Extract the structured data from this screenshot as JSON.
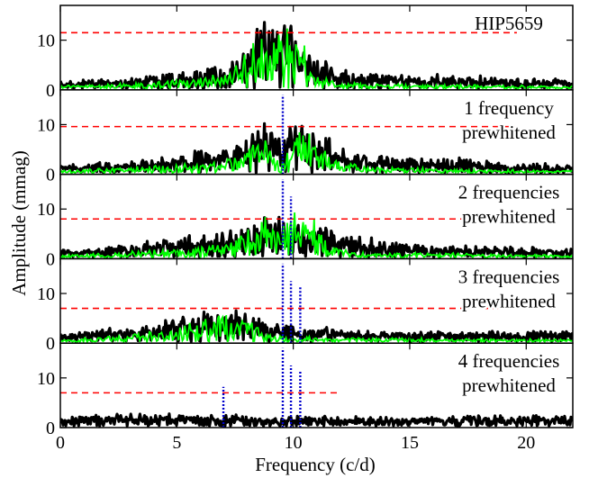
{
  "chart_data": {
    "type": "line",
    "xlabel": "Frequency (c/d)",
    "ylabel": "Amplitude (mmag)",
    "xlim": [
      0,
      22
    ],
    "xticks": [
      "0",
      "5",
      "10",
      "15",
      "20"
    ],
    "colors": {
      "spectrum": "#000000",
      "smoothed": "#00ff00",
      "threshold": "#ff0000",
      "frequency_marker": "#0000cc"
    },
    "panels": [
      {
        "label_lines": [
          "HIP5659"
        ],
        "ylim": [
          0,
          17
        ],
        "yticks": [
          "0",
          "10"
        ],
        "threshold": 11.5,
        "threshold_x_end": 19.6,
        "noise_level": 2.0,
        "envelope": [
          [
            0,
            1.8
          ],
          [
            2,
            2.2
          ],
          [
            4,
            3.0
          ],
          [
            6,
            4.0
          ],
          [
            7,
            5.0
          ],
          [
            8,
            9.0
          ],
          [
            8.6,
            15.5
          ],
          [
            9.0,
            12.0
          ],
          [
            9.5,
            16.5
          ],
          [
            10.0,
            14.0
          ],
          [
            10.4,
            11.0
          ],
          [
            11.0,
            7.0
          ],
          [
            12.0,
            4.5
          ],
          [
            13.0,
            3.2
          ],
          [
            15.0,
            3.0
          ],
          [
            17.0,
            3.5
          ],
          [
            19.0,
            2.5
          ],
          [
            22.0,
            2.2
          ]
        ],
        "green_envelope": [
          [
            0,
            0.8
          ],
          [
            3,
            1.5
          ],
          [
            6,
            2.5
          ],
          [
            7.5,
            5.0
          ],
          [
            8.6,
            14.0
          ],
          [
            9.0,
            8.0
          ],
          [
            9.5,
            16.0
          ],
          [
            10.0,
            11.0
          ],
          [
            10.5,
            9.0
          ],
          [
            11.0,
            3.0
          ],
          [
            12.0,
            1.5
          ],
          [
            22.0,
            0.8
          ]
        ],
        "markers": []
      },
      {
        "label_lines": [
          "1 frequency",
          "prewhitened"
        ],
        "ylim": [
          0,
          17
        ],
        "yticks": [
          "0",
          "10"
        ],
        "threshold": 9.6,
        "threshold_x_end": 19.6,
        "noise_level": 2.0,
        "envelope": [
          [
            0,
            1.8
          ],
          [
            2,
            2.5
          ],
          [
            4,
            3.5
          ],
          [
            6,
            5.0
          ],
          [
            7,
            5.5
          ],
          [
            8,
            7.0
          ],
          [
            9,
            11.5
          ],
          [
            9.5,
            8.0
          ],
          [
            10.3,
            11.8
          ],
          [
            11,
            9.0
          ],
          [
            12,
            6.5
          ],
          [
            13,
            4.0
          ],
          [
            15,
            3.5
          ],
          [
            17,
            3.5
          ],
          [
            19,
            2.5
          ],
          [
            22,
            2.0
          ]
        ],
        "green_envelope": [
          [
            0,
            0.8
          ],
          [
            3,
            1.5
          ],
          [
            6,
            2.5
          ],
          [
            7.5,
            3.5
          ],
          [
            9.0,
            9.0
          ],
          [
            9.6,
            3.0
          ],
          [
            10.3,
            11.5
          ],
          [
            11.0,
            6.5
          ],
          [
            12.0,
            3.0
          ],
          [
            13.5,
            1.5
          ],
          [
            22,
            0.8
          ]
        ],
        "markers": [
          {
            "x": 9.55,
            "amp": 16.0
          }
        ]
      },
      {
        "label_lines": [
          "2 frequencies",
          "prewhitened"
        ],
        "ylim": [
          0,
          17
        ],
        "yticks": [
          "0",
          "10"
        ],
        "threshold": 8.0,
        "threshold_x_end": 19.6,
        "noise_level": 2.0,
        "envelope": [
          [
            0,
            1.8
          ],
          [
            2,
            2.5
          ],
          [
            4,
            4.0
          ],
          [
            6,
            5.0
          ],
          [
            7.5,
            6.0
          ],
          [
            8.5,
            7.5
          ],
          [
            9.2,
            10.0
          ],
          [
            9.8,
            7.0
          ],
          [
            10.5,
            8.5
          ],
          [
            11,
            8.0
          ],
          [
            12,
            6.0
          ],
          [
            13,
            4.5
          ],
          [
            15,
            3.0
          ],
          [
            17,
            2.8
          ],
          [
            19,
            2.5
          ],
          [
            22,
            2.2
          ]
        ],
        "green_envelope": [
          [
            0,
            0.8
          ],
          [
            3,
            1.5
          ],
          [
            6,
            2.5
          ],
          [
            7.5,
            4.0
          ],
          [
            8.8,
            9.0
          ],
          [
            9.3,
            6.0
          ],
          [
            9.9,
            10.0
          ],
          [
            10.4,
            9.0
          ],
          [
            10.9,
            9.5
          ],
          [
            11.5,
            3.5
          ],
          [
            12.5,
            1.5
          ],
          [
            22,
            0.8
          ]
        ],
        "markers": [
          {
            "x": 9.55,
            "amp": 16.0
          },
          {
            "x": 9.9,
            "amp": 12.5
          }
        ]
      },
      {
        "label_lines": [
          "3 frequencies",
          "prewhitened"
        ],
        "ylim": [
          0,
          17
        ],
        "yticks": [
          "0",
          "10"
        ],
        "threshold": 7.0,
        "threshold_x_end": 19.6,
        "noise_level": 2.0,
        "envelope": [
          [
            0,
            2.0
          ],
          [
            2,
            3.0
          ],
          [
            4,
            4.0
          ],
          [
            5.5,
            6.0
          ],
          [
            6.5,
            7.0
          ],
          [
            7.5,
            7.5
          ],
          [
            8.5,
            5.0
          ],
          [
            9.5,
            4.0
          ],
          [
            10.5,
            3.5
          ],
          [
            12,
            3.0
          ],
          [
            14,
            2.5
          ],
          [
            17,
            2.5
          ],
          [
            20,
            2.5
          ],
          [
            22,
            2.5
          ]
        ],
        "green_envelope": [
          [
            0,
            0.8
          ],
          [
            3,
            1.8
          ],
          [
            5,
            3.0
          ],
          [
            6.0,
            5.0
          ],
          [
            7.0,
            8.0
          ],
          [
            7.5,
            6.0
          ],
          [
            8.0,
            5.0
          ],
          [
            9.0,
            2.0
          ],
          [
            10,
            1.5
          ],
          [
            12,
            1.2
          ],
          [
            22,
            0.8
          ]
        ],
        "markers": [
          {
            "x": 9.55,
            "amp": 16.0
          },
          {
            "x": 9.9,
            "amp": 12.5
          },
          {
            "x": 10.3,
            "amp": 11.5
          }
        ]
      },
      {
        "label_lines": [
          "4 frequencies",
          "prewhitened"
        ],
        "ylim": [
          0,
          17
        ],
        "yticks": [
          "0",
          "10"
        ],
        "threshold": 7.0,
        "threshold_x_end": 12.0,
        "noise_level": 1.7,
        "envelope": [
          [
            0,
            2.0
          ],
          [
            2,
            3.0
          ],
          [
            4,
            3.0
          ],
          [
            6,
            3.0
          ],
          [
            8,
            2.5
          ],
          [
            10,
            2.5
          ],
          [
            12,
            2.3
          ],
          [
            14,
            2.2
          ],
          [
            17,
            2.5
          ],
          [
            20,
            2.5
          ],
          [
            22,
            2.3
          ]
        ],
        "green_envelope": [],
        "markers": [
          {
            "x": 7.0,
            "amp": 8.2
          },
          {
            "x": 9.55,
            "amp": 16.0
          },
          {
            "x": 9.9,
            "amp": 12.5
          },
          {
            "x": 10.3,
            "amp": 11.5
          }
        ]
      }
    ]
  }
}
